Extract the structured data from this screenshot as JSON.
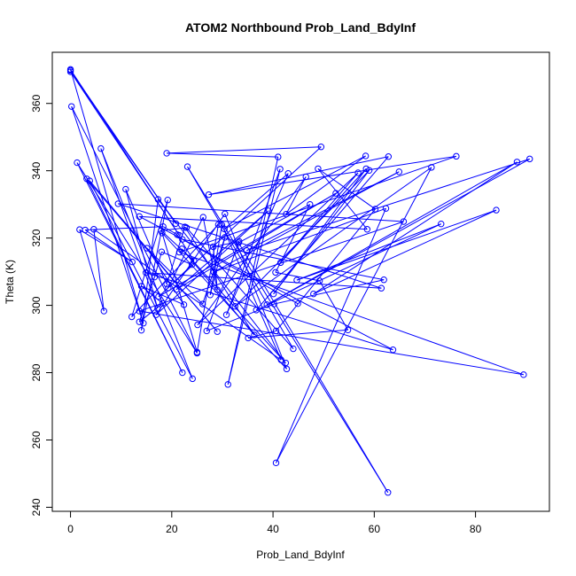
{
  "chart_data": {
    "type": "line",
    "title": "ATOM2 Northbound Prob_Land_BdyInf",
    "xlabel": "Prob_Land_BdyInf",
    "ylabel": "Theta (K)",
    "xlim": [
      -3.6,
      94.6
    ],
    "ylim": [
      238.8,
      375.2
    ],
    "x_ticks": [
      0,
      20,
      40,
      60,
      80
    ],
    "y_ticks": [
      240,
      260,
      280,
      300,
      320,
      340,
      360
    ],
    "x_tick_labels": [
      "0",
      "20",
      "40",
      "60",
      "80"
    ],
    "y_tick_labels": [
      "240",
      "260",
      "280",
      "300",
      "320",
      "340",
      "360"
    ],
    "grid": false,
    "legend": "none",
    "style": {
      "line_color": "#0000ff",
      "marker": "open-circle"
    },
    "series": [
      {
        "points": [
          [
            0.0,
            369.8
          ],
          [
            20.8,
            324.3
          ],
          [
            0.0,
            369.4
          ],
          [
            21.5,
            320.8
          ],
          [
            0.0,
            370.1
          ],
          [
            14.4,
            294.7
          ],
          [
            0.2,
            359.1
          ],
          [
            25.0,
            285.8
          ],
          [
            1.3,
            342.4
          ],
          [
            22.1,
            280.0
          ],
          [
            3.2,
            337.6
          ],
          [
            29.0,
            292.2
          ],
          [
            3.8,
            337.0
          ],
          [
            24.1,
            278.2
          ],
          [
            6.0,
            346.6
          ],
          [
            17.2,
            299.1
          ],
          [
            10.9,
            334.5
          ],
          [
            19.0,
            306.3
          ],
          [
            22.6,
            323.3
          ],
          [
            36.3,
            291.2
          ],
          [
            22.0,
            316.8
          ],
          [
            42.5,
            282.9
          ],
          [
            17.3,
            331.5
          ],
          [
            14.0,
            292.6
          ],
          [
            19.2,
            331.3
          ],
          [
            12.1,
            296.6
          ],
          [
            29.2,
            324.0
          ],
          [
            25.0,
            286.1
          ],
          [
            18.1,
            321.5
          ],
          [
            42.7,
            281.1
          ],
          [
            30.5,
            327.2
          ],
          [
            16.9,
            297.2
          ],
          [
            39.1,
            328.1
          ],
          [
            20.9,
            304.7
          ],
          [
            52.4,
            333.3
          ],
          [
            17.4,
            302.6
          ],
          [
            49.5,
            347.1
          ],
          [
            19.0,
            345.2
          ],
          [
            41.0,
            344.1
          ],
          [
            31.1,
            276.5
          ],
          [
            41.4,
            340.5
          ],
          [
            30.8,
            297.2
          ],
          [
            43.0,
            339.2
          ],
          [
            30.4,
            322.7
          ],
          [
            58.3,
            344.4
          ],
          [
            42.6,
            327.1
          ],
          [
            46.5,
            338.2
          ],
          [
            25.1,
            294.2
          ],
          [
            56.8,
            339.4
          ],
          [
            41.5,
            312.7
          ],
          [
            58.4,
            340.6
          ],
          [
            40.1,
            303.4
          ],
          [
            59.0,
            340.1
          ],
          [
            32.5,
            299.7
          ],
          [
            71.3,
            341.0
          ],
          [
            40.6,
            253.2
          ],
          [
            62.3,
            328.8
          ],
          [
            28.3,
            309.9
          ],
          [
            64.9,
            339.7
          ],
          [
            34.8,
            316.3
          ],
          [
            90.7,
            343.5
          ],
          [
            38.8,
            300.2
          ],
          [
            88.2,
            342.6
          ],
          [
            48.0,
            303.4
          ],
          [
            84.1,
            328.3
          ],
          [
            44.7,
            307.5
          ],
          [
            73.2,
            324.2
          ],
          [
            36.7,
            298.6
          ],
          [
            62.8,
            344.2
          ],
          [
            27.3,
            332.9
          ],
          [
            76.2,
            344.3
          ],
          [
            21.5,
            315.8
          ],
          [
            89.5,
            279.4
          ],
          [
            13.6,
            298.3
          ],
          [
            65.8,
            324.9
          ],
          [
            9.4,
            330.2
          ],
          [
            61.4,
            305.1
          ],
          [
            14.9,
            309.7
          ],
          [
            63.7,
            286.8
          ],
          [
            13.6,
            326.4
          ],
          [
            58.6,
            322.6
          ],
          [
            48.9,
            340.6
          ],
          [
            60.2,
            328.6
          ],
          [
            40.6,
            292.4
          ],
          [
            35.1,
            290.3
          ],
          [
            54.8,
            292.7
          ],
          [
            49.2,
            307.3
          ],
          [
            40.5,
            309.8
          ],
          [
            47.3,
            330.0
          ],
          [
            33.2,
            318.6
          ],
          [
            62.7,
            244.4
          ],
          [
            23.1,
            341.2
          ],
          [
            44.0,
            287.1
          ],
          [
            22.9,
            323.1
          ],
          [
            17.9,
            322.2
          ],
          [
            24.4,
            313.2
          ],
          [
            21.1,
            321.0
          ],
          [
            18.3,
            323.4
          ],
          [
            2.9,
            322.4
          ],
          [
            12.2,
            312.9
          ],
          [
            1.8,
            322.5
          ],
          [
            6.6,
            298.3
          ],
          [
            4.6,
            322.6
          ],
          [
            41.6,
            283.8
          ],
          [
            29.9,
            323.9
          ],
          [
            27.6,
            303.1
          ],
          [
            30.5,
            320.2
          ],
          [
            26.1,
            300.4
          ],
          [
            15.1,
            317.0
          ],
          [
            22.4,
            300.2
          ],
          [
            14.0,
            305.7
          ],
          [
            18.2,
            300.6
          ],
          [
            13.6,
            295.1
          ],
          [
            16.6,
            308.4
          ],
          [
            18.0,
            315.9
          ],
          [
            24.0,
            312.1
          ],
          [
            19.3,
            305.2
          ],
          [
            26.2,
            326.2
          ],
          [
            29.0,
            304.6
          ],
          [
            28.2,
            317.4
          ],
          [
            33.3,
            319.0
          ],
          [
            26.9,
            292.4
          ],
          [
            40.2,
            300.4
          ],
          [
            61.9,
            307.6
          ],
          [
            22.1,
            319.6
          ],
          [
            44.9,
            300.5
          ]
        ]
      }
    ]
  }
}
